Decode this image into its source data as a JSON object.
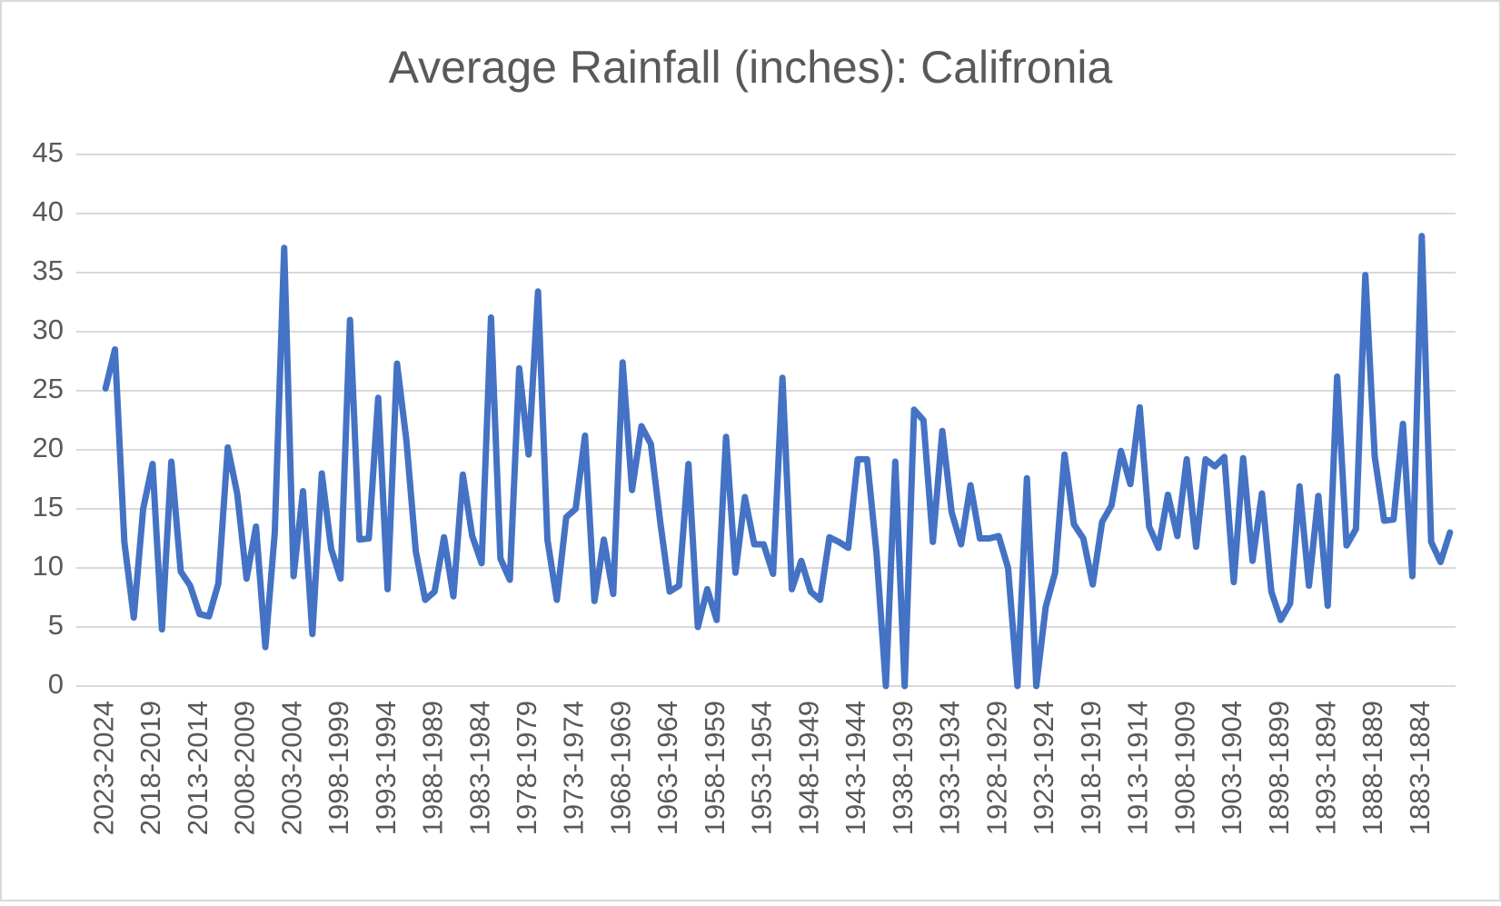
{
  "chart_data": {
    "type": "line",
    "title": "Average Rainfall (inches): Califronia",
    "categories": [
      "2023-2024",
      null,
      null,
      null,
      null,
      "2018-2019",
      null,
      null,
      null,
      null,
      "2013-2014",
      null,
      null,
      null,
      null,
      "2008-2009",
      null,
      null,
      null,
      null,
      "2003-2004",
      null,
      null,
      null,
      null,
      "1998-1999",
      null,
      null,
      null,
      null,
      "1993-1994",
      null,
      null,
      null,
      null,
      "1988-1989",
      null,
      null,
      null,
      null,
      "1983-1984",
      null,
      null,
      null,
      null,
      "1978-1979",
      null,
      null,
      null,
      null,
      "1973-1974",
      null,
      null,
      null,
      null,
      "1968-1969",
      null,
      null,
      null,
      null,
      "1963-1964",
      null,
      null,
      null,
      null,
      "1958-1959",
      null,
      null,
      null,
      null,
      "1953-1954",
      null,
      null,
      null,
      null,
      "1948-1949",
      null,
      null,
      null,
      null,
      "1943-1944",
      null,
      null,
      null,
      null,
      "1938-1939",
      null,
      null,
      null,
      null,
      "1933-1934",
      null,
      null,
      null,
      null,
      "1928-1929",
      null,
      null,
      null,
      null,
      "1923-1924",
      null,
      null,
      null,
      null,
      "1918-1919",
      null,
      null,
      null,
      null,
      "1913-1914",
      null,
      null,
      null,
      null,
      "1908-1909",
      null,
      null,
      null,
      null,
      "1903-1904",
      null,
      null,
      null,
      null,
      "1898-1899",
      null,
      null,
      null,
      null,
      "1893-1894",
      null,
      null,
      null,
      null,
      "1888-1889",
      null,
      null,
      null,
      null,
      "1883-1884",
      null,
      null,
      null
    ],
    "values": [
      25.2,
      28.5,
      12.2,
      5.8,
      15,
      18.8,
      4.8,
      19,
      9.7,
      8.5,
      6.1,
      5.9,
      8.7,
      20.2,
      16.3,
      9.1,
      13.5,
      3.3,
      13,
      37.1,
      9.3,
      16.5,
      4.4,
      18,
      11.6,
      9.1,
      31,
      12.4,
      12.5,
      24.4,
      8.2,
      27.3,
      20.8,
      11.4,
      7.3,
      8,
      12.6,
      7.6,
      17.9,
      12.7,
      10.4,
      31.2,
      10.8,
      9,
      26.9,
      19.6,
      33.4,
      12.4,
      7.3,
      14.3,
      15,
      21.2,
      7.2,
      12.4,
      7.8,
      27.4,
      16.6,
      22,
      20.5,
      13.9,
      8,
      8.5,
      18.8,
      5,
      8.2,
      5.6,
      21.1,
      9.6,
      16,
      12,
      12,
      9.5,
      26.1,
      8.2,
      10.6,
      8,
      7.3,
      12.6,
      12.2,
      11.7,
      19.2,
      19.2,
      11.3,
      0,
      19,
      0,
      23.4,
      22.5,
      12.2,
      21.6,
      14.7,
      12,
      17,
      12.5,
      12.5,
      12.7,
      10,
      0,
      17.6,
      0,
      6.7,
      9.6,
      19.6,
      13.7,
      12.5,
      8.6,
      13.9,
      15.3,
      19.9,
      17.1,
      23.6,
      13.5,
      11.7,
      16.2,
      12.7,
      19.2,
      11.8,
      19.2,
      18.6,
      19.4,
      8.8,
      19.3,
      10.6,
      16.3,
      8,
      5.6,
      7,
      16.9,
      8.5,
      16.1,
      6.8,
      26.2,
      11.9,
      13.3,
      34.8,
      19.4,
      14,
      14.1,
      22.2,
      9.3,
      38.1,
      12.2,
      10.5,
      13
    ],
    "color": "#4472c4",
    "ylim": [
      0,
      45
    ],
    "yticks": [
      0,
      5,
      10,
      15,
      20,
      25,
      30,
      35,
      40,
      45
    ],
    "grid": true
  }
}
